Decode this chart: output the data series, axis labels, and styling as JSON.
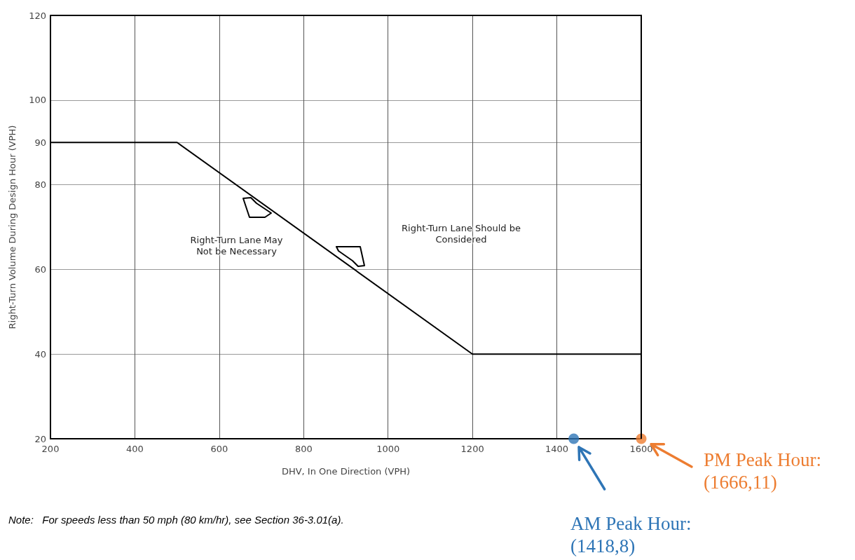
{
  "chart_data": {
    "type": "line",
    "xlabel": "DHV, In One Direction (VPH)",
    "ylabel": "Right-Turn Volume During Design Hour (VPH)",
    "xlim": [
      200,
      1600
    ],
    "xticks": [
      200,
      400,
      600,
      800,
      1000,
      1200,
      1400,
      1600
    ],
    "ylim": [
      20,
      120
    ],
    "yticks": [
      20,
      40,
      60,
      80,
      90,
      100,
      120
    ],
    "grid": true,
    "series": [
      {
        "color": "#000000",
        "x": [
          200,
          500,
          1200,
          1600
        ],
        "values": [
          90,
          90,
          40,
          40
        ]
      },
      {
        "type": "scatter",
        "color": "#2e75b6",
        "x": [
          1440
        ],
        "values": [
          20
        ]
      },
      {
        "type": "scatter",
        "color": "#ed7d31",
        "x": [
          1600
        ],
        "values": [
          20
        ]
      }
    ],
    "annotations": [
      "Right-Turn Lane May Not be Necessary",
      "Right-Turn Lane Should be Considered",
      "AM Peak Hour: (1418,8)",
      "PM Peak Hour: (1666,11)",
      "Note:   For speeds less than 50 mph (80 km/hr), see Section 36-3.01(a)."
    ]
  }
}
